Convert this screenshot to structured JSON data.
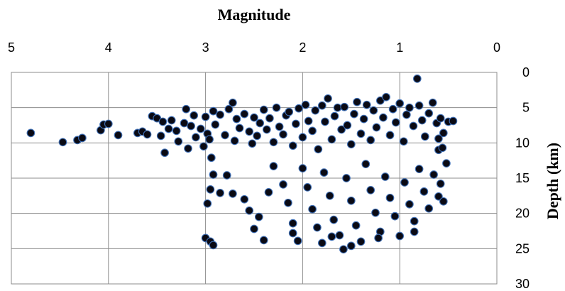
{
  "chart_data": {
    "type": "scatter",
    "title": "Magnitude",
    "xlabel": "Magnitude",
    "ylabel": "Depth (km)",
    "x_reversed": true,
    "y_reversed": true,
    "xlim": [
      5,
      0
    ],
    "ylim": [
      0,
      30
    ],
    "x_ticks": [
      "5",
      "4",
      "3",
      "2",
      "1",
      "0"
    ],
    "y_ticks": [
      "0",
      "5",
      "10",
      "15",
      "20",
      "25",
      "30"
    ],
    "grid": true,
    "x_axis_position": "top",
    "y_axis_position": "right",
    "marker_fill": "#0a0a14",
    "marker_edge": "#3f6fb5",
    "series": [
      {
        "values": [
          [
            4.8,
            8.6
          ],
          [
            4.47,
            9.9
          ],
          [
            4.32,
            9.6
          ],
          [
            4.27,
            9.3
          ],
          [
            4.08,
            8.2
          ],
          [
            4.05,
            7.4
          ],
          [
            4.0,
            7.3
          ],
          [
            3.9,
            8.9
          ],
          [
            3.7,
            8.6
          ],
          [
            3.65,
            8.4
          ],
          [
            3.6,
            8.8
          ],
          [
            3.55,
            6.2
          ],
          [
            3.5,
            6.5
          ],
          [
            3.46,
            9.0
          ],
          [
            3.44,
            7.0
          ],
          [
            3.42,
            11.4
          ],
          [
            3.38,
            8.0
          ],
          [
            3.35,
            6.8
          ],
          [
            3.3,
            8.3
          ],
          [
            3.28,
            9.8
          ],
          [
            3.22,
            7.2
          ],
          [
            3.2,
            5.2
          ],
          [
            3.18,
            10.8
          ],
          [
            3.15,
            7.6
          ],
          [
            3.12,
            6.1
          ],
          [
            3.1,
            9.2
          ],
          [
            3.05,
            8.0
          ],
          [
            3.02,
            10.5
          ],
          [
            3.0,
            6.3
          ],
          [
            2.98,
            8.7
          ],
          [
            2.96,
            9.5
          ],
          [
            2.94,
            12.1
          ],
          [
            2.92,
            5.5
          ],
          [
            2.9,
            7.4
          ],
          [
            2.85,
            6.0
          ],
          [
            2.8,
            8.9
          ],
          [
            2.76,
            5.2
          ],
          [
            2.72,
            4.3
          ],
          [
            2.7,
            9.7
          ],
          [
            2.68,
            6.6
          ],
          [
            2.65,
            7.9
          ],
          [
            2.6,
            5.9
          ],
          [
            2.55,
            8.4
          ],
          [
            2.52,
            10.1
          ],
          [
            2.5,
            6.4
          ],
          [
            2.47,
            9.0
          ],
          [
            2.44,
            7.2
          ],
          [
            2.4,
            5.3
          ],
          [
            2.37,
            8.1
          ],
          [
            2.34,
            6.5
          ],
          [
            2.3,
            9.9
          ],
          [
            2.27,
            5.0
          ],
          [
            2.24,
            7.7
          ],
          [
            2.2,
            8.8
          ],
          [
            2.17,
            6.1
          ],
          [
            2.14,
            5.6
          ],
          [
            2.1,
            10.4
          ],
          [
            2.07,
            7.3
          ],
          [
            2.04,
            5.1
          ],
          [
            2.0,
            9.2
          ],
          [
            1.97,
            4.6
          ],
          [
            1.94,
            6.9
          ],
          [
            1.9,
            8.3
          ],
          [
            1.87,
            5.4
          ],
          [
            1.84,
            10.9
          ],
          [
            1.8,
            4.7
          ],
          [
            1.77,
            7.0
          ],
          [
            1.74,
            3.7
          ],
          [
            1.7,
            9.5
          ],
          [
            1.67,
            6.2
          ],
          [
            1.64,
            5.0
          ],
          [
            1.6,
            8.1
          ],
          [
            1.57,
            4.9
          ],
          [
            1.54,
            7.5
          ],
          [
            1.5,
            10.2
          ],
          [
            1.47,
            5.9
          ],
          [
            1.44,
            4.2
          ],
          [
            1.4,
            8.7
          ],
          [
            1.37,
            6.6
          ],
          [
            1.34,
            4.6
          ],
          [
            1.3,
            9.6
          ],
          [
            1.27,
            5.4
          ],
          [
            1.24,
            7.8
          ],
          [
            1.2,
            4.0
          ],
          [
            1.17,
            6.4
          ],
          [
            1.14,
            3.5
          ],
          [
            1.1,
            8.9
          ],
          [
            1.07,
            5.2
          ],
          [
            1.04,
            7.1
          ],
          [
            1.0,
            4.4
          ],
          [
            0.96,
            9.8
          ],
          [
            0.93,
            6.0
          ],
          [
            0.9,
            5.0
          ],
          [
            0.86,
            7.6
          ],
          [
            0.82,
            0.9
          ],
          [
            0.8,
            4.7
          ],
          [
            0.77,
            6.8
          ],
          [
            0.74,
            9.1
          ],
          [
            0.7,
            5.8
          ],
          [
            0.66,
            4.3
          ],
          [
            0.62,
            7.2
          ],
          [
            0.6,
            11.0
          ],
          [
            0.58,
            6.5
          ],
          [
            0.55,
            8.6
          ],
          [
            0.5,
            7.0
          ],
          [
            0.45,
            6.9
          ],
          [
            2.92,
            14.5
          ],
          [
            2.95,
            16.6
          ],
          [
            2.98,
            18.6
          ],
          [
            2.85,
            17.1
          ],
          [
            3.0,
            23.5
          ],
          [
            2.95,
            24.0
          ],
          [
            2.92,
            24.5
          ],
          [
            2.78,
            14.6
          ],
          [
            2.72,
            17.2
          ],
          [
            2.6,
            18.0
          ],
          [
            2.55,
            19.6
          ],
          [
            2.5,
            22.2
          ],
          [
            2.45,
            20.5
          ],
          [
            2.4,
            23.8
          ],
          [
            2.35,
            17.0
          ],
          [
            2.3,
            13.3
          ],
          [
            2.2,
            15.9
          ],
          [
            2.15,
            18.5
          ],
          [
            2.1,
            21.4
          ],
          [
            2.05,
            23.9
          ],
          [
            2.0,
            13.6
          ],
          [
            1.95,
            16.3
          ],
          [
            1.9,
            19.4
          ],
          [
            1.85,
            22.0
          ],
          [
            1.8,
            24.2
          ],
          [
            1.78,
            14.2
          ],
          [
            1.72,
            17.5
          ],
          [
            1.68,
            20.9
          ],
          [
            1.62,
            23.1
          ],
          [
            1.58,
            25.1
          ],
          [
            1.55,
            15.0
          ],
          [
            1.5,
            18.2
          ],
          [
            1.45,
            21.7
          ],
          [
            1.4,
            24.0
          ],
          [
            1.35,
            13.0
          ],
          [
            1.3,
            16.7
          ],
          [
            1.25,
            19.9
          ],
          [
            1.2,
            22.6
          ],
          [
            1.15,
            14.8
          ],
          [
            1.1,
            17.8
          ],
          [
            1.05,
            20.4
          ],
          [
            1.0,
            23.2
          ],
          [
            0.95,
            15.6
          ],
          [
            0.9,
            18.7
          ],
          [
            0.85,
            21.1
          ],
          [
            0.8,
            13.7
          ],
          [
            0.75,
            16.9
          ],
          [
            0.7,
            19.3
          ],
          [
            0.65,
            14.5
          ],
          [
            0.6,
            17.6
          ],
          [
            0.58,
            15.8
          ],
          [
            0.55,
            18.3
          ],
          [
            0.52,
            12.9
          ],
          [
            0.56,
            10.7
          ],
          [
            0.6,
            9.4
          ],
          [
            0.85,
            22.6
          ],
          [
            1.22,
            23.5
          ],
          [
            1.5,
            24.6
          ],
          [
            1.7,
            23.3
          ],
          [
            2.1,
            22.8
          ]
        ]
      }
    ]
  }
}
